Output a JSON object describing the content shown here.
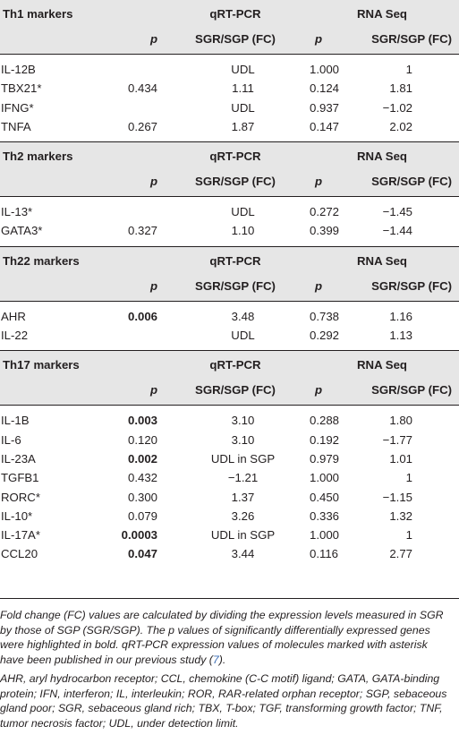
{
  "columns": {
    "p": "p",
    "fc": "SGR/SGP (FC)"
  },
  "sections": [
    {
      "title": "Th1 markers",
      "qrt": "qRT-PCR",
      "rna": "RNA Seq",
      "rows": [
        {
          "gene": "IL-12B",
          "qp": "",
          "qfc": "UDL",
          "rp": "1.000",
          "rfc": "1",
          "qpb": false
        },
        {
          "gene": "TBX21*",
          "qp": "0.434",
          "qfc": "1.11",
          "rp": "0.124",
          "rfc": "1.81",
          "qpb": false
        },
        {
          "gene": "IFNG*",
          "qp": "",
          "qfc": "UDL",
          "rp": "0.937",
          "rfc": "−1.02",
          "qpb": false
        },
        {
          "gene": "TNFA",
          "qp": "0.267",
          "qfc": "1.87",
          "rp": "0.147",
          "rfc": "2.02",
          "qpb": false
        }
      ]
    },
    {
      "title": "Th2 markers",
      "qrt": "qRT-PCR",
      "rna": "RNA Seq",
      "rows": [
        {
          "gene": "IL-13*",
          "qp": "",
          "qfc": "UDL",
          "rp": "0.272",
          "rfc": "−1.45",
          "qpb": false
        },
        {
          "gene": "GATA3*",
          "qp": "0.327",
          "qfc": "1.10",
          "rp": "0.399",
          "rfc": "−1.44",
          "qpb": false
        }
      ]
    },
    {
      "title": "Th22 markers",
      "qrt": "qRT-PCR",
      "rna": "RNA Seq",
      "rows": [
        {
          "gene": "AHR",
          "qp": "0.006",
          "qfc": "3.48",
          "rp": "0.738",
          "rfc": "1.16",
          "qpb": true
        },
        {
          "gene": "IL-22",
          "qp": "",
          "qfc": "UDL",
          "rp": "0.292",
          "rfc": "1.13",
          "qpb": false
        }
      ]
    },
    {
      "title": "Th17 markers",
      "qrt": "qRT-PCR",
      "rna": "RNA Seq",
      "rows": [
        {
          "gene": "IL-1B",
          "qp": "0.003",
          "qfc": "3.10",
          "rp": "0.288",
          "rfc": "1.80",
          "qpb": true
        },
        {
          "gene": "IL-6",
          "qp": "0.120",
          "qfc": "3.10",
          "rp": "0.192",
          "rfc": "−1.77",
          "qpb": false
        },
        {
          "gene": "IL-23A",
          "qp": "0.002",
          "qfc": "UDL in SGP",
          "rp": "0.979",
          "rfc": "1.01",
          "qpb": true
        },
        {
          "gene": "TGFB1",
          "qp": "0.432",
          "qfc": "−1.21",
          "rp": "1.000",
          "rfc": "1",
          "qpb": false
        },
        {
          "gene": "RORC*",
          "qp": "0.300",
          "qfc": "1.37",
          "rp": "0.450",
          "rfc": "−1.15",
          "qpb": false
        },
        {
          "gene": "IL-10*",
          "qp": "0.079",
          "qfc": "3.26",
          "rp": "0.336",
          "rfc": "1.32",
          "qpb": false
        },
        {
          "gene": "IL-17A*",
          "qp": "0.0003",
          "qfc": "UDL in SGP",
          "rp": "1.000",
          "rfc": "1",
          "qpb": true
        },
        {
          "gene": "CCL20",
          "qp": "0.047",
          "qfc": "3.44",
          "rp": "0.116",
          "rfc": "2.77",
          "qpb": true
        }
      ]
    }
  ],
  "notes": {
    "note1": "Fold change (FC) values are calculated by dividing the expression levels measured in SGR by those of SGP (SGR/SGP). The p values of significantly differentially expressed genes were highlighted in bold. qRT-PCR expression values of molecules marked with asterisk have been published in our previous study (",
    "note1_ref": "7",
    "note1_end": ").",
    "note2": "AHR, aryl hydrocarbon receptor; CCL, chemokine (C-C motif) ligand; GATA, GATA-binding protein; IFN, interferon; IL, interleukin; ROR, RAR-related orphan receptor; SGP, sebaceous gland poor; SGR, sebaceous gland rich; TBX, T-box; TGF, transforming growth factor; TNF, tumor necrosis factor; UDL, under detection limit."
  },
  "colors": {
    "header_bg": "#e6e6e6",
    "text": "#231f20",
    "link": "#3c6eb4"
  }
}
